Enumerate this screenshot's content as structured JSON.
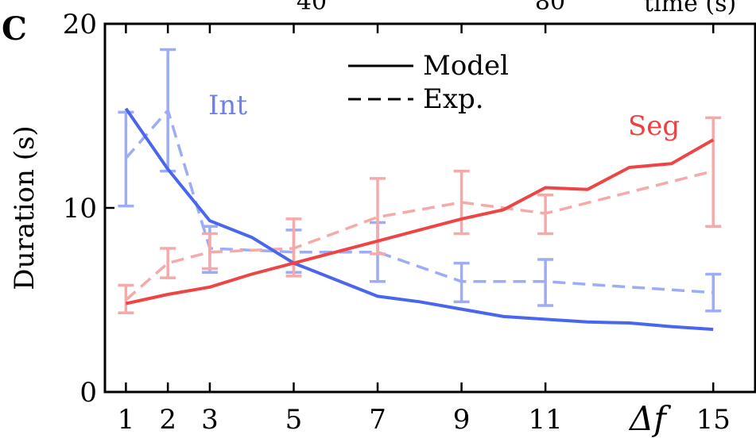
{
  "panel_label": "C",
  "top_residue": {
    "left": "40",
    "mid": "80",
    "right": "time (s)"
  },
  "chart_data": {
    "type": "line",
    "xlabel": "Δf",
    "ylabel": "Duration (s)",
    "xlim": [
      0.5,
      16
    ],
    "ylim": [
      0,
      20
    ],
    "x_ticks": [
      1,
      2,
      3,
      5,
      7,
      9,
      11,
      15
    ],
    "y_ticks": [
      0,
      10,
      20
    ],
    "grid": false,
    "legend": {
      "placement": "top-center",
      "entries": [
        {
          "label": "Model",
          "style": "solid"
        },
        {
          "label": "Exp.",
          "style": "dashed"
        }
      ]
    },
    "annotations": [
      {
        "text": "Int",
        "color": "#6e7ff0"
      },
      {
        "text": "Seg",
        "color": "#ee4040"
      }
    ],
    "series": [
      {
        "name": "Int",
        "kind": "model",
        "color": "#4a66ee",
        "x": [
          1,
          2,
          3,
          4,
          5,
          6,
          7,
          8,
          9,
          10,
          11,
          12,
          13,
          14,
          15
        ],
        "y": [
          15.4,
          12.1,
          9.3,
          8.4,
          7.0,
          6.1,
          5.2,
          4.9,
          4.5,
          4.1,
          3.95,
          3.8,
          3.75,
          3.55,
          3.4
        ]
      },
      {
        "name": "Int",
        "kind": "experiment",
        "color": "#9eabf5",
        "x": [
          1,
          2,
          3,
          5,
          7,
          9,
          11,
          15
        ],
        "y": [
          12.7,
          15.3,
          7.8,
          7.6,
          7.6,
          6.0,
          6.0,
          5.4
        ],
        "err_low": [
          10.1,
          12.0,
          6.5,
          6.5,
          6.0,
          4.9,
          4.7,
          4.4
        ],
        "err_high": [
          15.2,
          18.6,
          9.0,
          8.8,
          9.2,
          7.0,
          7.2,
          6.4
        ]
      },
      {
        "name": "Seg",
        "kind": "model",
        "color": "#ee4444",
        "x": [
          1,
          2,
          3,
          4,
          5,
          6,
          7,
          8,
          9,
          10,
          11,
          12,
          13,
          14,
          15
        ],
        "y": [
          4.8,
          5.3,
          5.7,
          6.4,
          7.0,
          7.6,
          8.2,
          8.8,
          9.4,
          9.9,
          11.1,
          11.0,
          12.2,
          12.4,
          13.7
        ]
      },
      {
        "name": "Seg",
        "kind": "experiment",
        "color": "#f5aaaa",
        "x": [
          1,
          2,
          3,
          5,
          7,
          9,
          11,
          15
        ],
        "y": [
          5.0,
          7.0,
          7.6,
          7.8,
          9.5,
          10.3,
          9.7,
          12.0
        ],
        "err_low": [
          4.3,
          6.2,
          6.7,
          6.3,
          7.5,
          8.6,
          8.6,
          9.0
        ],
        "err_high": [
          5.8,
          7.8,
          8.6,
          9.4,
          11.6,
          12.0,
          10.7,
          14.9
        ]
      }
    ]
  }
}
